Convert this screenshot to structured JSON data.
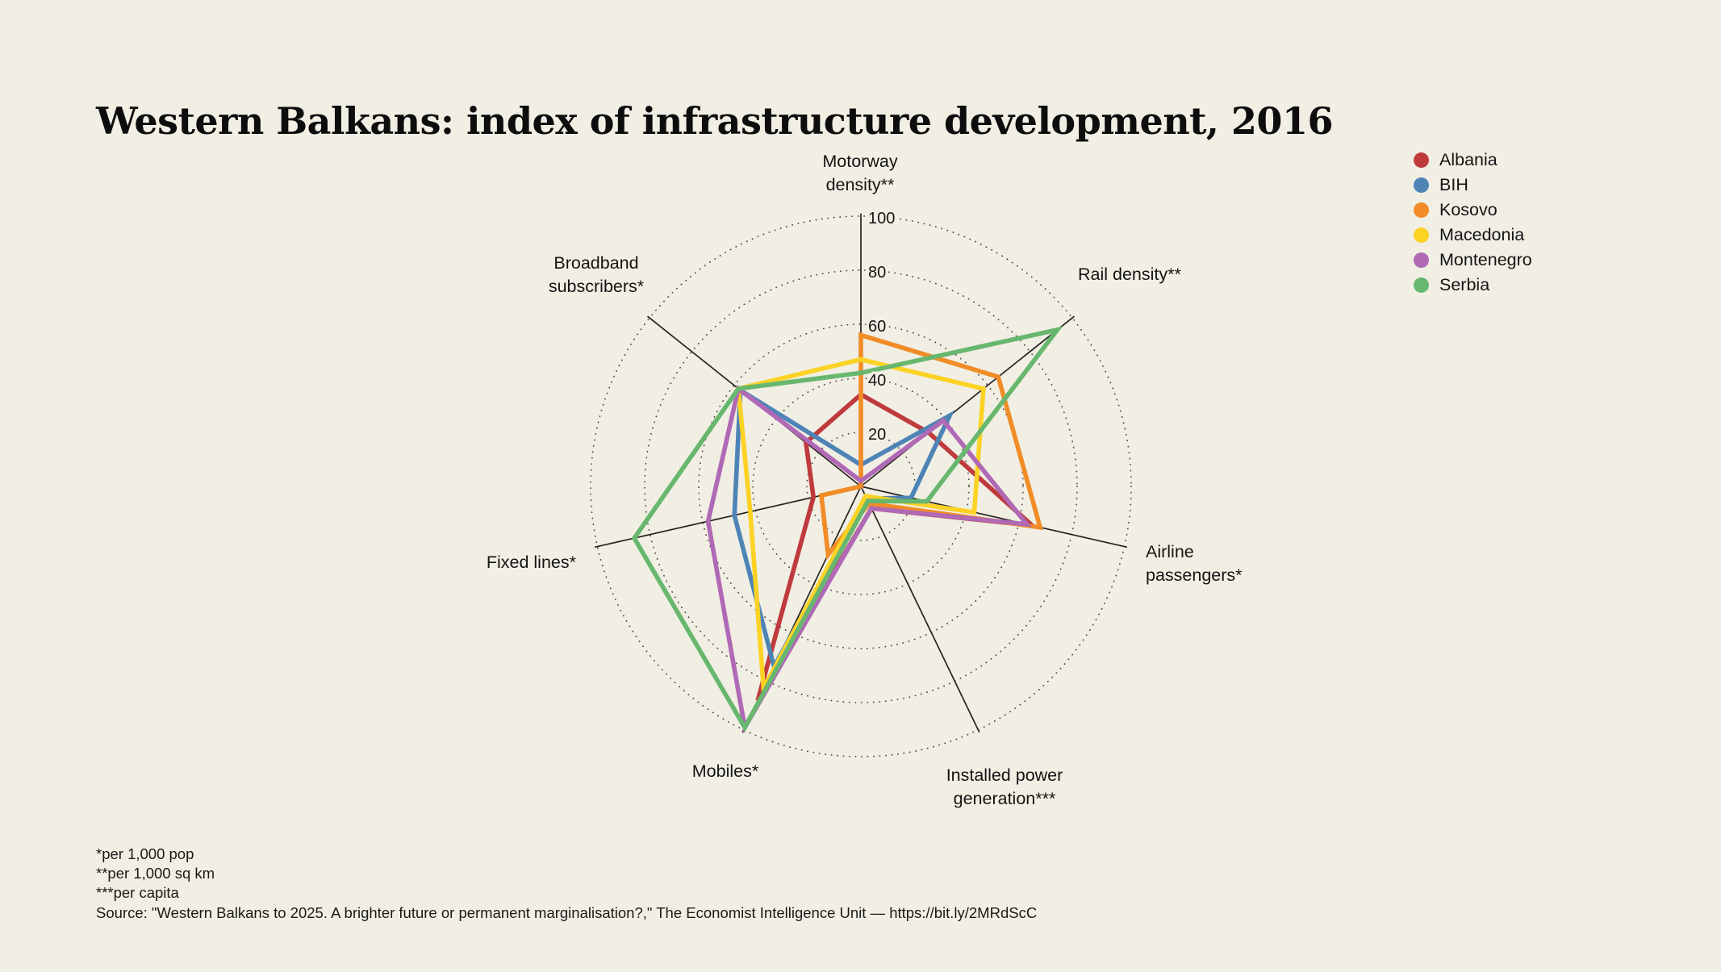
{
  "title": "Western Balkans: index of infrastructure development, 2016",
  "legend": {
    "items": [
      {
        "label": "Albania",
        "color": "#bf3a3d"
      },
      {
        "label": "BIH",
        "color": "#4e84b5"
      },
      {
        "label": "Kosovo",
        "color": "#f18c26"
      },
      {
        "label": "Macedonia",
        "color": "#fcd225"
      },
      {
        "label": "Montenegro",
        "color": "#b069b5"
      },
      {
        "label": "Serbia",
        "color": "#68b76e"
      }
    ]
  },
  "chart_data": {
    "type": "radar",
    "axes": [
      {
        "label": "Motorway density**",
        "lines": [
          "Motorway",
          "density**"
        ]
      },
      {
        "label": "Rail density**",
        "lines": [
          "Rail density**"
        ]
      },
      {
        "label": "Airline passengers*",
        "lines": [
          "Airline",
          "passengers*"
        ]
      },
      {
        "label": "Installed power generation***",
        "lines": [
          "Installed power",
          "generation***"
        ]
      },
      {
        "label": "Mobiles*",
        "lines": [
          "Mobiles*"
        ]
      },
      {
        "label": "Fixed lines*",
        "lines": [
          "Fixed lines*"
        ]
      },
      {
        "label": "Broadband subscribers*",
        "lines": [
          "Broadband",
          "subscribers*"
        ]
      }
    ],
    "ticks": [
      20,
      40,
      60,
      80,
      100
    ],
    "rlim": [
      0,
      100
    ],
    "grid": "dotted-circles",
    "legend_position": "top-right",
    "series": [
      {
        "name": "Albania",
        "color": "#bf3a3d",
        "values": [
          34,
          32,
          65,
          9,
          88,
          18,
          26
        ]
      },
      {
        "name": "BIH",
        "color": "#4e84b5",
        "values": [
          8,
          42,
          19,
          5,
          74,
          48,
          57
        ]
      },
      {
        "name": "Kosovo",
        "color": "#f18c26",
        "values": [
          56,
          65,
          68,
          7,
          28,
          15,
          0
        ]
      },
      {
        "name": "Macedonia",
        "color": "#fcd225",
        "values": [
          47,
          58,
          43,
          4,
          83,
          42,
          58
        ]
      },
      {
        "name": "Montenegro",
        "color": "#b069b5",
        "values": [
          2,
          39,
          63,
          9,
          99,
          58,
          58
        ]
      },
      {
        "name": "Serbia",
        "color": "#68b76e",
        "values": [
          42,
          93,
          25,
          6,
          99,
          86,
          58
        ]
      }
    ]
  },
  "footnotes": [
    "*per 1,000 pop",
    "**per 1,000 sq km",
    "***per capita",
    "Source: \"Western Balkans to 2025. A brighter future or permanent marginalisation?,\" The Economist Intelligence Unit — https://bit.ly/2MRdScC"
  ]
}
